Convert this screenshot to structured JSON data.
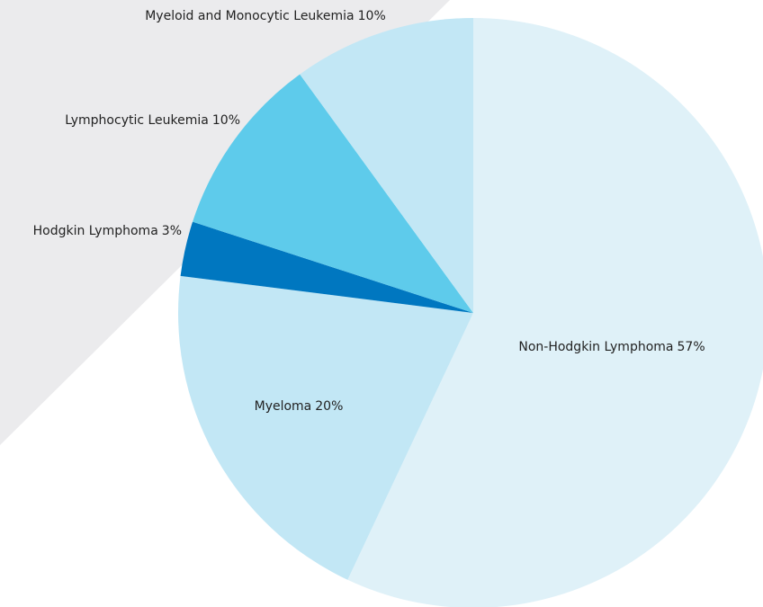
{
  "chart_data": {
    "type": "pie",
    "categories": [
      "Non-Hodgkin Lymphoma",
      "Myeloma",
      "Hodgkin Lymphoma",
      "Lymphocytic Leukemia",
      "Myeloid and Monocytic Leukemia"
    ],
    "values": [
      57,
      20,
      3,
      10,
      10
    ],
    "value_labels": [
      "57%",
      "20%",
      "3%",
      "10%",
      "10%"
    ],
    "colors": [
      "#dff1f8",
      "#c2e7f5",
      "#0077c0",
      "#5ecbeb",
      "#c2e7f5"
    ]
  }
}
